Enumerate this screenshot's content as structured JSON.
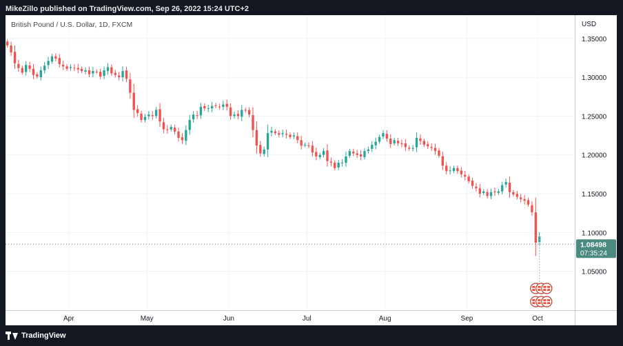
{
  "header": {
    "published_text": "MikeZillo published on TradingView.com, Sep 26, 2022 15:24 UTC+2"
  },
  "footer": {
    "brand": "TradingView"
  },
  "colors": {
    "up": "#26a69a",
    "down": "#ef5350",
    "last_price_box": "#4a8a80",
    "grid": "#f0f3fa",
    "axis_text": "#131722",
    "legend_text": "#4a4a4a"
  },
  "chart_data": {
    "type": "candlestick",
    "title": "British Pound / U.S. Dollar, 1D, FXCM",
    "currency_label": "USD",
    "ylim": [
      1.0,
      1.38
    ],
    "y_ticks": [
      1.05,
      1.1,
      1.15,
      1.2,
      1.25,
      1.3,
      1.35
    ],
    "y_tick_labels": [
      "1.05000",
      "1.10000",
      "1.15000",
      "1.20000",
      "1.25000",
      "1.30000",
      "1.35000"
    ],
    "x_ticks": [
      {
        "label": "Apr",
        "index": 17
      },
      {
        "label": "May",
        "index": 38
      },
      {
        "label": "Jun",
        "index": 60
      },
      {
        "label": "Jul",
        "index": 81
      },
      {
        "label": "Aug",
        "index": 102
      },
      {
        "label": "Sep",
        "index": 124
      },
      {
        "label": "Oct",
        "index": 143
      }
    ],
    "x_range": [
      0,
      153
    ],
    "last_price": 1.08498,
    "last_price_label": "1.08498",
    "countdown_label": "07:35:24",
    "event_markers": {
      "index": 142.5,
      "rows": [
        1.028,
        1.011
      ],
      "per_row": 3
    },
    "closes": [
      1.341,
      1.332,
      1.318,
      1.312,
      1.306,
      1.316,
      1.311,
      1.303,
      1.301,
      1.309,
      1.315,
      1.321,
      1.327,
      1.324,
      1.317,
      1.314,
      1.311,
      1.313,
      1.312,
      1.31,
      1.308,
      1.309,
      1.304,
      1.308,
      1.307,
      1.301,
      1.309,
      1.313,
      1.305,
      1.303,
      1.3,
      1.308,
      1.298,
      1.28,
      1.258,
      1.254,
      1.245,
      1.249,
      1.252,
      1.25,
      1.258,
      1.243,
      1.233,
      1.232,
      1.236,
      1.23,
      1.222,
      1.219,
      1.232,
      1.245,
      1.252,
      1.251,
      1.262,
      1.26,
      1.26,
      1.263,
      1.263,
      1.262,
      1.265,
      1.262,
      1.25,
      1.252,
      1.25,
      1.258,
      1.257,
      1.252,
      1.232,
      1.212,
      1.202,
      1.207,
      1.228,
      1.231,
      1.228,
      1.226,
      1.228,
      1.226,
      1.223,
      1.225,
      1.219,
      1.212,
      1.213,
      1.212,
      1.203,
      1.198,
      1.2,
      1.205,
      1.192,
      1.19,
      1.183,
      1.19,
      1.19,
      1.198,
      1.205,
      1.202,
      1.2,
      1.198,
      1.205,
      1.207,
      1.213,
      1.217,
      1.223,
      1.228,
      1.221,
      1.214,
      1.219,
      1.215,
      1.214,
      1.21,
      1.208,
      1.209,
      1.222,
      1.218,
      1.213,
      1.211,
      1.209,
      1.205,
      1.199,
      1.186,
      1.179,
      1.18,
      1.183,
      1.179,
      1.175,
      1.172,
      1.166,
      1.16,
      1.157,
      1.15,
      1.153,
      1.147,
      1.152,
      1.152,
      1.153,
      1.161,
      1.165,
      1.152,
      1.149,
      1.146,
      1.143,
      1.141,
      1.136,
      1.126,
      1.087,
      1.095
    ]
  }
}
